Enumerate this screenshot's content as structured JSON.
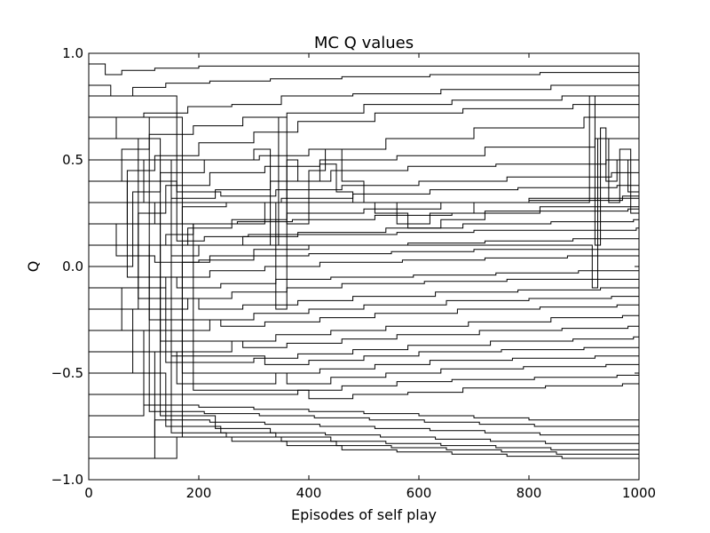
{
  "chart_data": {
    "type": "line",
    "title": "MC Q values",
    "xlabel": "Episodes of self play",
    "ylabel": "Q",
    "xlim": [
      0,
      1000
    ],
    "ylim": [
      -1.0,
      1.0
    ],
    "x_ticks": [
      0,
      200,
      400,
      600,
      800,
      1000
    ],
    "y_ticks": [
      -1.0,
      -0.5,
      0.0,
      0.5,
      1.0
    ],
    "x_tick_labels": [
      "0",
      "200",
      "400",
      "600",
      "800",
      "1000"
    ],
    "y_tick_labels": [
      "−1.0",
      "−0.5",
      "0.0",
      "0.5",
      "1.0"
    ],
    "grid": false,
    "legend": false,
    "line_color": "#000000",
    "series": [
      {
        "x": [
          0,
          30,
          60,
          120,
          200,
          320,
          450,
          600,
          800,
          1000
        ],
        "values": [
          0.95,
          0.9,
          0.92,
          0.93,
          0.94,
          0.94,
          0.94,
          0.94,
          0.94,
          0.94
        ]
      },
      {
        "x": [
          0,
          40,
          80,
          140,
          220,
          330,
          460,
          620,
          820,
          1000
        ],
        "values": [
          0.85,
          0.8,
          0.84,
          0.86,
          0.87,
          0.88,
          0.89,
          0.9,
          0.91,
          0.92
        ]
      },
      {
        "x": [
          0,
          50,
          100,
          180,
          260,
          350,
          480,
          640,
          840,
          1000
        ],
        "values": [
          0.6,
          0.7,
          0.72,
          0.75,
          0.76,
          0.8,
          0.81,
          0.83,
          0.85,
          0.86
        ]
      },
      {
        "x": [
          0,
          60,
          110,
          190,
          280,
          360,
          500,
          660,
          860,
          1000
        ],
        "values": [
          0.4,
          0.55,
          0.62,
          0.66,
          0.7,
          0.72,
          0.76,
          0.78,
          0.8,
          0.81
        ]
      },
      {
        "x": [
          0,
          70,
          120,
          200,
          300,
          380,
          520,
          680,
          880,
          1000
        ],
        "values": [
          0.2,
          0.45,
          0.52,
          0.58,
          0.63,
          0.68,
          0.72,
          0.74,
          0.76,
          0.77
        ]
      },
      {
        "x": [
          0,
          80,
          130,
          210,
          310,
          400,
          540,
          700,
          900,
          1000
        ],
        "values": [
          0.0,
          0.35,
          0.44,
          0.5,
          0.52,
          0.55,
          0.6,
          0.65,
          0.7,
          0.72
        ]
      },
      {
        "x": [
          0,
          90,
          140,
          220,
          320,
          420,
          560,
          720,
          920,
          1000
        ],
        "values": [
          -0.2,
          0.25,
          0.38,
          0.44,
          0.47,
          0.5,
          0.52,
          0.56,
          0.6,
          0.62
        ]
      },
      {
        "x": [
          0,
          100,
          150,
          230,
          330,
          440,
          580,
          740,
          940,
          1000
        ],
        "values": [
          0.5,
          0.3,
          0.32,
          0.36,
          0.4,
          0.45,
          0.47,
          0.48,
          0.5,
          0.52
        ]
      },
      {
        "x": [
          0,
          110,
          160,
          240,
          340,
          460,
          600,
          760,
          950,
          1000
        ],
        "values": [
          0.7,
          0.4,
          0.35,
          0.33,
          0.36,
          0.38,
          0.4,
          0.42,
          0.44,
          0.45
        ]
      },
      {
        "x": [
          0,
          120,
          170,
          250,
          350,
          480,
          620,
          780,
          960,
          1000
        ],
        "values": [
          0.3,
          0.2,
          0.28,
          0.3,
          0.32,
          0.34,
          0.36,
          0.37,
          0.38,
          0.38
        ]
      },
      {
        "x": [
          0,
          130,
          180,
          260,
          360,
          500,
          640,
          800,
          970,
          1000
        ],
        "values": [
          -0.4,
          0.1,
          0.18,
          0.22,
          0.25,
          0.27,
          0.3,
          0.31,
          0.33,
          0.34
        ]
      },
      {
        "x": [
          0,
          140,
          190,
          270,
          370,
          520,
          660,
          820,
          980,
          1000
        ],
        "values": [
          0.1,
          0.15,
          0.2,
          0.21,
          0.22,
          0.24,
          0.25,
          0.26,
          0.27,
          0.28
        ]
      },
      {
        "x": [
          0,
          150,
          200,
          280,
          380,
          540,
          680,
          840,
          990,
          1000
        ],
        "values": [
          -0.6,
          0.05,
          0.1,
          0.14,
          0.16,
          0.18,
          0.2,
          0.21,
          0.22,
          0.22
        ]
      },
      {
        "x": [
          0,
          160,
          210,
          290,
          390,
          560,
          700,
          860,
          995,
          1000
        ],
        "values": [
          0.8,
          0.12,
          0.14,
          0.15,
          0.15,
          0.16,
          0.17,
          0.17,
          0.18,
          0.18
        ]
      },
      {
        "x": [
          0,
          170,
          220,
          300,
          400,
          580,
          720,
          880,
          1000
        ],
        "values": [
          -0.8,
          0.02,
          0.05,
          0.08,
          0.1,
          0.11,
          0.12,
          0.13,
          0.14
        ]
      },
      {
        "x": [
          0,
          50,
          120,
          200,
          300,
          400,
          550,
          700,
          850,
          1000
        ],
        "values": [
          0.2,
          0.05,
          0.02,
          0.03,
          0.05,
          0.06,
          0.07,
          0.08,
          0.08,
          0.09
        ]
      },
      {
        "x": [
          0,
          60,
          140,
          220,
          320,
          420,
          570,
          720,
          870,
          1000
        ],
        "values": [
          -0.3,
          -0.1,
          -0.05,
          -0.02,
          0.0,
          0.02,
          0.03,
          0.04,
          0.05,
          0.05
        ]
      },
      {
        "x": [
          0,
          70,
          160,
          240,
          340,
          440,
          590,
          740,
          890,
          1000
        ],
        "values": [
          0.4,
          -0.05,
          -0.1,
          -0.08,
          -0.06,
          -0.05,
          -0.04,
          -0.03,
          -0.02,
          -0.02
        ]
      },
      {
        "x": [
          0,
          80,
          180,
          260,
          360,
          460,
          610,
          760,
          910,
          1000
        ],
        "values": [
          -0.5,
          -0.2,
          -0.15,
          -0.12,
          -0.1,
          -0.08,
          -0.07,
          -0.06,
          -0.06,
          -0.06
        ]
      },
      {
        "x": [
          0,
          90,
          200,
          280,
          380,
          480,
          630,
          780,
          930,
          1000
        ],
        "values": [
          0.6,
          -0.15,
          -0.2,
          -0.18,
          -0.16,
          -0.14,
          -0.12,
          -0.11,
          -0.1,
          -0.1
        ]
      },
      {
        "x": [
          0,
          100,
          220,
          300,
          400,
          500,
          650,
          800,
          950,
          1000
        ],
        "values": [
          -0.7,
          -0.3,
          -0.25,
          -0.22,
          -0.2,
          -0.18,
          -0.16,
          -0.15,
          -0.14,
          -0.14
        ]
      },
      {
        "x": [
          0,
          110,
          240,
          320,
          420,
          520,
          670,
          820,
          960,
          1000
        ],
        "values": [
          0.1,
          -0.25,
          -0.28,
          -0.26,
          -0.24,
          -0.22,
          -0.2,
          -0.19,
          -0.18,
          -0.18
        ]
      },
      {
        "x": [
          0,
          120,
          260,
          340,
          440,
          540,
          690,
          840,
          970,
          1000
        ],
        "values": [
          -0.9,
          -0.4,
          -0.35,
          -0.32,
          -0.3,
          -0.28,
          -0.26,
          -0.24,
          -0.23,
          -0.22
        ]
      },
      {
        "x": [
          0,
          130,
          280,
          360,
          460,
          560,
          710,
          860,
          980,
          1000
        ],
        "values": [
          0.3,
          -0.35,
          -0.38,
          -0.36,
          -0.34,
          -0.32,
          -0.3,
          -0.29,
          -0.28,
          -0.27
        ]
      },
      {
        "x": [
          0,
          140,
          300,
          380,
          480,
          580,
          730,
          880,
          990,
          1000
        ],
        "values": [
          -0.1,
          -0.45,
          -0.43,
          -0.41,
          -0.39,
          -0.37,
          -0.35,
          -0.34,
          -0.33,
          -0.33
        ]
      },
      {
        "x": [
          0,
          150,
          320,
          400,
          500,
          600,
          750,
          900,
          1000
        ],
        "values": [
          0.5,
          -0.42,
          -0.46,
          -0.44,
          -0.42,
          -0.4,
          -0.39,
          -0.38,
          -0.37
        ]
      },
      {
        "x": [
          0,
          160,
          340,
          420,
          520,
          620,
          770,
          920,
          1000
        ],
        "values": [
          -0.4,
          -0.55,
          -0.5,
          -0.48,
          -0.46,
          -0.44,
          -0.43,
          -0.42,
          -0.42
        ]
      },
      {
        "x": [
          0,
          170,
          360,
          440,
          540,
          640,
          790,
          940,
          1000
        ],
        "values": [
          0.7,
          -0.5,
          -0.55,
          -0.52,
          -0.5,
          -0.48,
          -0.47,
          -0.46,
          -0.46
        ]
      },
      {
        "x": [
          0,
          180,
          380,
          460,
          560,
          660,
          810,
          960,
          1000
        ],
        "values": [
          -0.6,
          -0.6,
          -0.58,
          -0.56,
          -0.54,
          -0.53,
          -0.52,
          -0.51,
          -0.51
        ]
      },
      {
        "x": [
          0,
          190,
          400,
          480,
          580,
          680,
          830,
          970,
          1000
        ],
        "values": [
          0.2,
          -0.58,
          -0.62,
          -0.6,
          -0.59,
          -0.57,
          -0.56,
          -0.55,
          -0.55
        ]
      },
      {
        "x": [
          0,
          100,
          200,
          300,
          400,
          500,
          600,
          700,
          800,
          1000
        ],
        "values": [
          -0.3,
          -0.65,
          -0.66,
          -0.67,
          -0.68,
          -0.69,
          -0.7,
          -0.71,
          -0.72,
          -0.73
        ]
      },
      {
        "x": [
          0,
          110,
          210,
          310,
          410,
          510,
          610,
          710,
          810,
          1000
        ],
        "values": [
          0.4,
          -0.68,
          -0.69,
          -0.7,
          -0.71,
          -0.72,
          -0.73,
          -0.74,
          -0.75,
          -0.76
        ]
      },
      {
        "x": [
          0,
          120,
          220,
          320,
          420,
          520,
          620,
          720,
          820,
          1000
        ],
        "values": [
          -0.8,
          -0.72,
          -0.73,
          -0.74,
          -0.75,
          -0.76,
          -0.77,
          -0.78,
          -0.79,
          -0.8
        ]
      },
      {
        "x": [
          0,
          130,
          230,
          330,
          430,
          530,
          630,
          730,
          830,
          1000
        ],
        "values": [
          0.6,
          -0.7,
          -0.76,
          -0.78,
          -0.79,
          -0.8,
          -0.81,
          -0.82,
          -0.83,
          -0.84
        ]
      },
      {
        "x": [
          0,
          140,
          240,
          340,
          440,
          540,
          640,
          740,
          840,
          1000
        ],
        "values": [
          -0.5,
          -0.75,
          -0.78,
          -0.8,
          -0.82,
          -0.83,
          -0.84,
          -0.85,
          -0.86,
          -0.87
        ]
      },
      {
        "x": [
          0,
          150,
          250,
          350,
          450,
          550,
          650,
          750,
          850,
          1000
        ],
        "values": [
          0.1,
          -0.78,
          -0.8,
          -0.82,
          -0.84,
          -0.85,
          -0.86,
          -0.87,
          -0.88,
          -0.89
        ]
      },
      {
        "x": [
          0,
          160,
          260,
          360,
          460,
          560,
          660,
          760,
          860,
          1000
        ],
        "values": [
          -0.9,
          -0.8,
          -0.82,
          -0.84,
          -0.86,
          -0.87,
          -0.88,
          -0.89,
          -0.9,
          -0.91
        ]
      },
      {
        "x": [
          0,
          300,
          330,
          345,
          360,
          400,
          430,
          460,
          500,
          560,
          620,
          700,
          800,
          1000
        ],
        "values": [
          0.5,
          0.55,
          0.1,
          0.7,
          0.2,
          0.45,
          0.55,
          0.4,
          0.3,
          0.2,
          0.25,
          0.3,
          0.32,
          0.34
        ]
      },
      {
        "x": [
          0,
          320,
          340,
          360,
          380,
          420,
          450,
          480,
          520,
          580,
          640,
          720,
          820,
          1000
        ],
        "values": [
          0.2,
          0.3,
          -0.2,
          0.5,
          0.4,
          0.48,
          0.35,
          0.3,
          0.25,
          0.18,
          0.22,
          0.26,
          0.28,
          0.3
        ]
      },
      {
        "x": [
          0,
          900,
          910,
          920,
          930,
          940,
          960,
          980,
          1000
        ],
        "values": [
          0.3,
          0.3,
          0.8,
          0.1,
          0.65,
          0.4,
          0.5,
          0.35,
          0.45
        ]
      },
      {
        "x": [
          0,
          905,
          915,
          925,
          945,
          965,
          985,
          1000
        ],
        "values": [
          0.1,
          0.1,
          -0.1,
          0.6,
          0.3,
          0.55,
          0.25,
          0.4
        ]
      }
    ]
  }
}
